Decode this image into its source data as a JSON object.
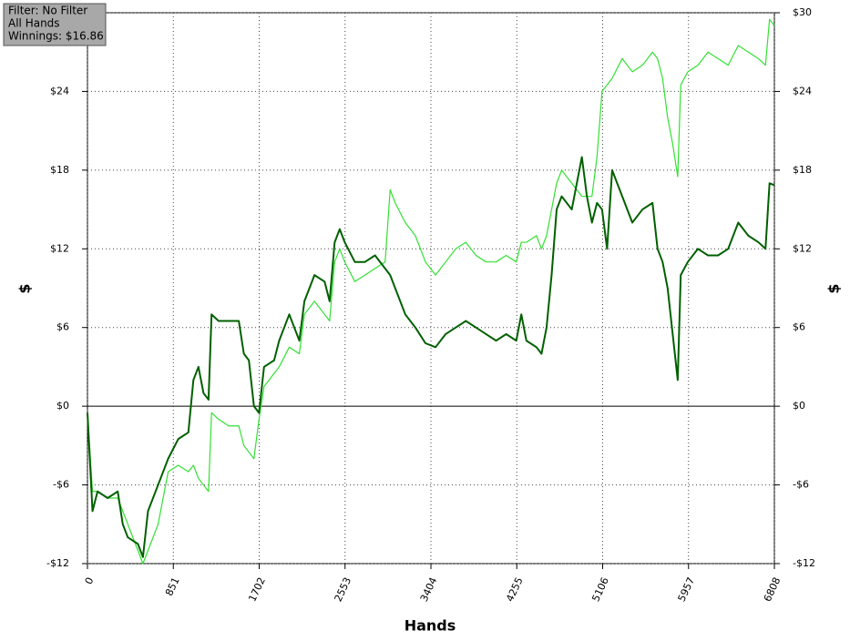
{
  "chart_data": {
    "type": "line",
    "xlabel": "Hands",
    "ylabel": "$",
    "y2label": "$",
    "annotations": [
      "Filter: No Filter",
      "All Hands",
      "Winnings: $16.86"
    ],
    "xlim": [
      0,
      6808
    ],
    "xticks": [
      0,
      851,
      1702,
      2553,
      3404,
      4255,
      5106,
      5957,
      6808
    ],
    "ylim": [
      -12,
      30
    ],
    "yticks": [
      {
        "value": -12,
        "label": "-$12"
      },
      {
        "value": -6,
        "label": "-$6"
      },
      {
        "value": 0,
        "label": "$0"
      },
      {
        "value": 6,
        "label": "$6"
      },
      {
        "value": 12,
        "label": "$12"
      },
      {
        "value": 18,
        "label": "$18"
      },
      {
        "value": 24,
        "label": "$24"
      },
      {
        "value": 30,
        "label": "$30"
      }
    ],
    "y2lim": [
      -12,
      30
    ],
    "y2ticks": [
      {
        "value": -12,
        "label": "-$12"
      },
      {
        "value": -6,
        "label": "-$6"
      },
      {
        "value": 0,
        "label": "$0"
      },
      {
        "value": 6,
        "label": "$6"
      },
      {
        "value": 12,
        "label": "$12"
      },
      {
        "value": 18,
        "label": "$18"
      },
      {
        "value": 24,
        "label": "$24"
      },
      {
        "value": 30,
        "label": "$30"
      }
    ],
    "grid": true,
    "x": [
      0,
      50,
      100,
      200,
      300,
      350,
      400,
      500,
      550,
      600,
      700,
      800,
      900,
      1000,
      1050,
      1100,
      1150,
      1200,
      1230,
      1300,
      1400,
      1500,
      1550,
      1600,
      1650,
      1700,
      1750,
      1850,
      1900,
      2000,
      2100,
      2150,
      2250,
      2350,
      2400,
      2450,
      2500,
      2550,
      2650,
      2750,
      2850,
      2950,
      3000,
      3050,
      3150,
      3250,
      3350,
      3450,
      3550,
      3650,
      3750,
      3850,
      3950,
      4050,
      4150,
      4250,
      4300,
      4350,
      4450,
      4500,
      4550,
      4600,
      4650,
      4700,
      4800,
      4900,
      4950,
      5000,
      5050,
      5100,
      5150,
      5200,
      5300,
      5400,
      5500,
      5600,
      5650,
      5700,
      5750,
      5800,
      5850,
      5880,
      5950,
      6050,
      6150,
      6250,
      6350,
      6450,
      6550,
      6650,
      6720,
      6760,
      6808
    ],
    "series": [
      {
        "color": "#33e033",
        "values": [
          -0.5,
          -6.5,
          -6.5,
          -7,
          -7,
          -8,
          -9,
          -11,
          -12,
          -11,
          -9,
          -5,
          -4.5,
          -5,
          -4.5,
          -5.5,
          -6,
          -6.5,
          -0.5,
          -1,
          -1.5,
          -1.5,
          -3,
          -3.5,
          -4,
          -1,
          1.5,
          2.5,
          3,
          4.5,
          4,
          7,
          8,
          7,
          6.5,
          11,
          12,
          11,
          9.5,
          10,
          10.5,
          11,
          16.5,
          15.5,
          14,
          13,
          11,
          10,
          11,
          12,
          12.5,
          11.5,
          11,
          11,
          11.5,
          11,
          12.5,
          12.5,
          13,
          12,
          13,
          15,
          17,
          18,
          17,
          16,
          16,
          16,
          19,
          24,
          24.5,
          25,
          26.5,
          25.5,
          26,
          27,
          26.5,
          25,
          22,
          20,
          17.5,
          24.5,
          25.5,
          26,
          27,
          26.5,
          26,
          27.5,
          27,
          26.5,
          26,
          29.5,
          29
        ]
      },
      {
        "color": "#006000",
        "values": [
          -0.5,
          -8,
          -6.5,
          -7,
          -6.5,
          -9,
          -10,
          -10.5,
          -11.5,
          -8,
          -6,
          -4,
          -2.5,
          -2,
          2,
          3,
          1,
          0.5,
          7,
          6.5,
          6.5,
          6.5,
          4,
          3.5,
          0,
          -0.5,
          3,
          3.5,
          5,
          7,
          5,
          8,
          10,
          9.5,
          8,
          12.5,
          13.5,
          12.5,
          11,
          11,
          11.5,
          10.5,
          10,
          9,
          7,
          6,
          4.8,
          4.5,
          5.5,
          6,
          6.5,
          6,
          5.5,
          5,
          5.5,
          5,
          7,
          5,
          4.5,
          4,
          6,
          10,
          15,
          16,
          15,
          19,
          16,
          14,
          15.5,
          15,
          12,
          18,
          16,
          14,
          15,
          15.5,
          12,
          11,
          9,
          5.5,
          2,
          10,
          11,
          12,
          11.5,
          11.5,
          12,
          14,
          13,
          12.5,
          12,
          17,
          16.86
        ]
      }
    ]
  }
}
